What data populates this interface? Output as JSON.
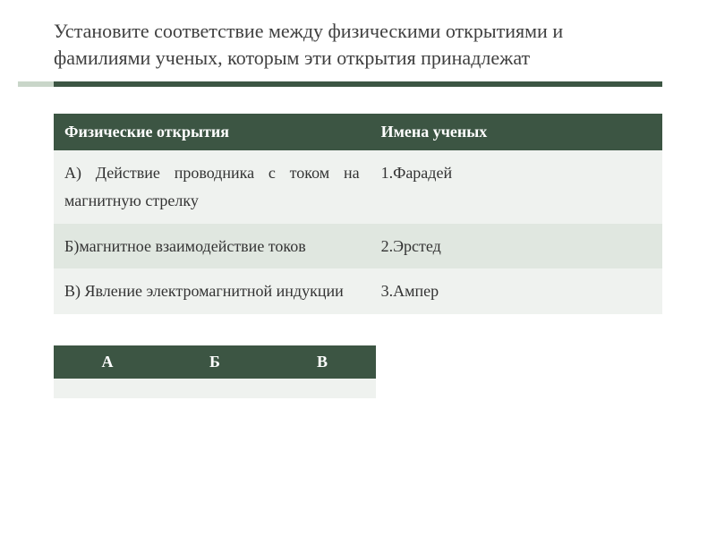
{
  "title": "Установите соответствие между физическими открытиями и фамилиями ученых, которым эти открытия принадлежат",
  "colors": {
    "accent_dark": "#3c5543",
    "accent_light": "#c9d6c9",
    "row_odd": "#eff2ef",
    "row_even": "#e0e7e0",
    "text": "#404040",
    "header_text": "#ffffff"
  },
  "matching_table": {
    "headers": [
      "Физические открытия",
      "Имена ученых"
    ],
    "rows": [
      {
        "left": "А) Действие проводника с током на магнитную стрелку",
        "right": "1.Фарадей"
      },
      {
        "left": "Б)магнитное взаимодействие токов",
        "right": "2.Эрстед"
      },
      {
        "left": "В) Явление электромагнитной индукции",
        "right": "3.Ампер"
      }
    ]
  },
  "answer_table": {
    "headers": [
      "А",
      "Б",
      "В"
    ],
    "cells": [
      "",
      "",
      ""
    ]
  },
  "fontsize": {
    "title": 22,
    "body": 18
  }
}
